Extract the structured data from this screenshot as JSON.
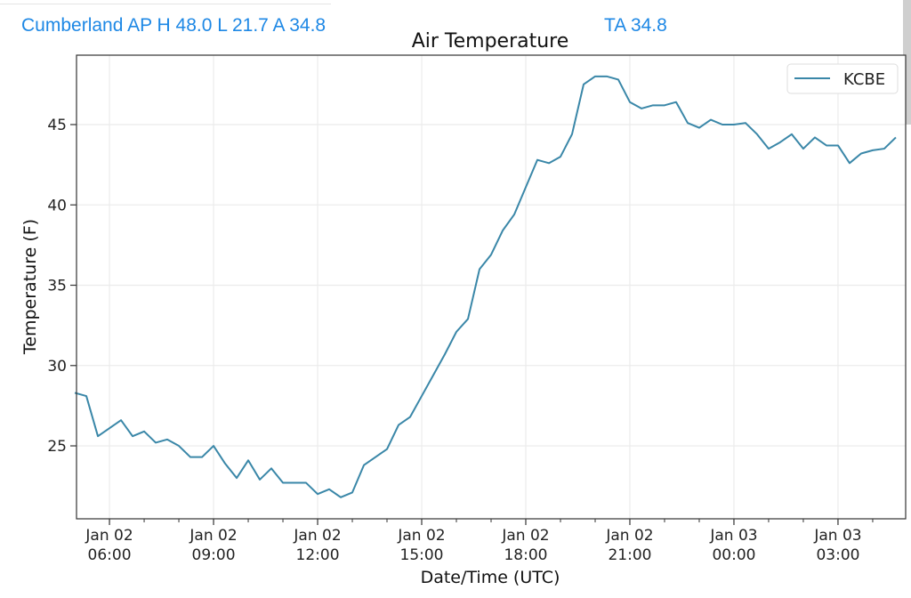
{
  "header": {
    "station_summary": "Cumberland AP H 48.0 L 21.7 A 34.8",
    "ta_summary": "TA 34.8"
  },
  "colors": {
    "header_text": "#1e88e5",
    "series_line": "#3a87a8",
    "grid": "#ebebeb"
  },
  "chart_data": {
    "type": "line",
    "title": "Air Temperature",
    "xlabel": "Date/Time (UTC)",
    "ylabel": "Temperature (F)",
    "x_units": "hours since Jan 02 00:00 UTC",
    "xlim": [
      5.05,
      28.95
    ],
    "ylim": [
      20.46,
      49.32
    ],
    "grid": true,
    "legend": {
      "position": "top-right",
      "entries": [
        "KCBE"
      ]
    },
    "x_ticks": [
      {
        "value": 6,
        "line1": "Jan 02",
        "line2": "06:00"
      },
      {
        "value": 9,
        "line1": "Jan 02",
        "line2": "09:00"
      },
      {
        "value": 12,
        "line1": "Jan 02",
        "line2": "12:00"
      },
      {
        "value": 15,
        "line1": "Jan 02",
        "line2": "15:00"
      },
      {
        "value": 18,
        "line1": "Jan 02",
        "line2": "18:00"
      },
      {
        "value": 21,
        "line1": "Jan 02",
        "line2": "21:00"
      },
      {
        "value": 24,
        "line1": "Jan 03",
        "line2": "00:00"
      },
      {
        "value": 27,
        "line1": "Jan 03",
        "line2": "03:00"
      }
    ],
    "y_ticks": [
      25,
      30,
      35,
      40,
      45
    ],
    "series": [
      {
        "name": "KCBE",
        "start_hour": 5.0,
        "interval_minutes": 20,
        "values": [
          28.3,
          28.1,
          25.6,
          26.1,
          26.6,
          25.6,
          25.9,
          25.2,
          25.4,
          25.0,
          24.3,
          24.3,
          25.0,
          23.9,
          23.0,
          24.1,
          22.9,
          23.6,
          22.7,
          22.7,
          22.7,
          22.0,
          22.3,
          21.8,
          22.1,
          23.8,
          24.3,
          24.8,
          26.3,
          26.8,
          28.1,
          29.4,
          30.7,
          32.1,
          32.9,
          36.0,
          36.9,
          38.4,
          39.4,
          41.1,
          42.8,
          42.6,
          43.0,
          44.4,
          47.5,
          48.0,
          48.0,
          47.8,
          46.4,
          46.0,
          46.2,
          46.2,
          46.4,
          45.1,
          44.8,
          45.3,
          45.0,
          45.0,
          45.1,
          44.4,
          43.5,
          43.9,
          44.4,
          43.5,
          44.2,
          43.7,
          43.7,
          42.6,
          43.2,
          43.4,
          43.5,
          44.2
        ]
      }
    ]
  }
}
